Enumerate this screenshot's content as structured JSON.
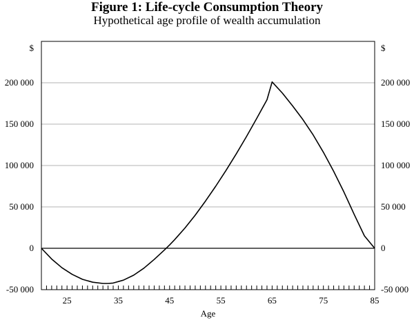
{
  "chart_data": {
    "type": "line",
    "title": "Figure 1: Life-cycle Consumption Theory",
    "subtitle": "Hypothetical age profile of wealth accumulation",
    "xlabel": "Age",
    "y_unit_label": "$",
    "xlim": [
      20,
      85
    ],
    "ylim": [
      -50000,
      250000
    ],
    "x_ticks": [
      25,
      35,
      45,
      55,
      65,
      75,
      85
    ],
    "x_tick_labels": [
      "25",
      "35",
      "45",
      "55",
      "65",
      "75",
      "85"
    ],
    "y_ticks": [
      -50000,
      0,
      50000,
      100000,
      150000,
      200000
    ],
    "y_tick_labels": [
      "-50 000",
      "0",
      "50 000",
      "100 000",
      "150 000",
      "200 000"
    ],
    "minor_x_step": 1,
    "grid": "horizontal",
    "dual_y_axis": true,
    "series": [
      {
        "x": [
          20,
          22,
          24,
          26,
          28,
          30,
          32,
          33,
          34,
          36,
          38,
          40,
          42,
          44,
          45,
          46,
          48,
          50,
          52,
          54,
          56,
          58,
          60,
          62,
          64,
          65,
          67,
          69,
          71,
          73,
          75,
          77,
          79,
          81,
          83,
          85
        ],
        "values": [
          0,
          -13000,
          -23500,
          -31500,
          -37500,
          -41000,
          -42500,
          -42500,
          -42000,
          -38500,
          -32500,
          -24000,
          -13500,
          -2000,
          4000,
          10500,
          24500,
          40000,
          57000,
          75000,
          94000,
          114000,
          135000,
          157000,
          179500,
          201000,
          187500,
          172000,
          155500,
          137000,
          116000,
          93000,
          68000,
          41000,
          15000,
          0
        ],
        "color": "#000000"
      }
    ]
  }
}
